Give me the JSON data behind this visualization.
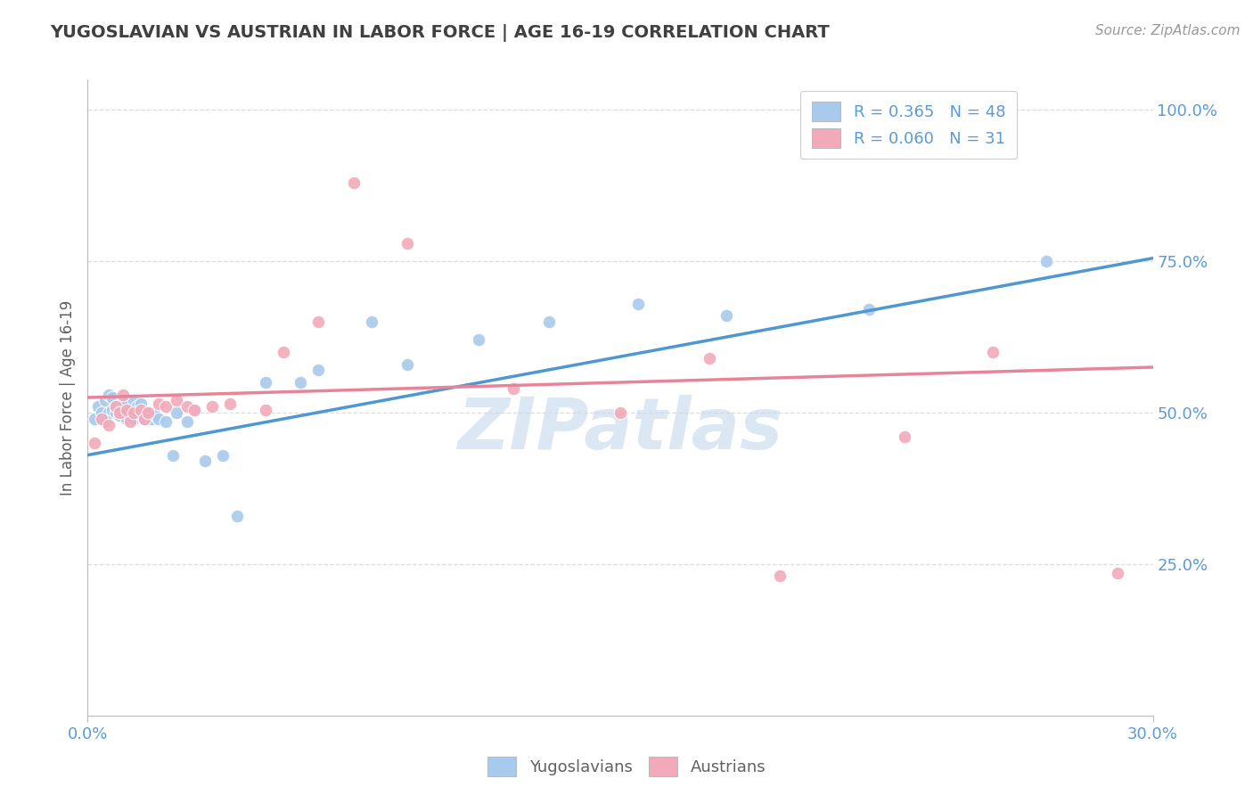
{
  "title": "YUGOSLAVIAN VS AUSTRIAN IN LABOR FORCE | AGE 16-19 CORRELATION CHART",
  "source_text": "Source: ZipAtlas.com",
  "ylabel": "In Labor Force | Age 16-19",
  "xlim": [
    0.0,
    0.3
  ],
  "ylim": [
    0.0,
    1.05
  ],
  "ytick_vals": [
    0.25,
    0.5,
    0.75,
    1.0
  ],
  "legend_r1": "R = 0.365",
  "legend_n1": "N = 48",
  "legend_r2": "R = 0.060",
  "legend_n2": "N = 31",
  "blue_color": "#A8CAEC",
  "pink_color": "#F2AABA",
  "blue_line_color": "#4F97D0",
  "pink_line_color": "#E8849A",
  "watermark_color": "#C5D8EE",
  "yugoslavians_x": [
    0.002,
    0.003,
    0.004,
    0.005,
    0.005,
    0.006,
    0.006,
    0.007,
    0.007,
    0.008,
    0.008,
    0.009,
    0.01,
    0.01,
    0.01,
    0.011,
    0.012,
    0.012,
    0.013,
    0.013,
    0.014,
    0.015,
    0.015,
    0.016,
    0.016,
    0.017,
    0.018,
    0.019,
    0.02,
    0.022,
    0.024,
    0.025,
    0.028,
    0.03,
    0.033,
    0.038,
    0.042,
    0.05,
    0.06,
    0.065,
    0.08,
    0.09,
    0.11,
    0.13,
    0.155,
    0.18,
    0.22,
    0.27
  ],
  "yugoslavians_y": [
    0.49,
    0.51,
    0.5,
    0.52,
    0.485,
    0.5,
    0.53,
    0.505,
    0.525,
    0.5,
    0.51,
    0.495,
    0.5,
    0.515,
    0.52,
    0.49,
    0.495,
    0.505,
    0.52,
    0.49,
    0.51,
    0.505,
    0.515,
    0.5,
    0.49,
    0.5,
    0.49,
    0.495,
    0.49,
    0.485,
    0.43,
    0.5,
    0.485,
    0.505,
    0.42,
    0.43,
    0.33,
    0.55,
    0.55,
    0.57,
    0.65,
    0.58,
    0.62,
    0.65,
    0.68,
    0.66,
    0.67,
    0.75
  ],
  "austrians_x": [
    0.002,
    0.004,
    0.006,
    0.008,
    0.009,
    0.01,
    0.011,
    0.012,
    0.013,
    0.015,
    0.016,
    0.017,
    0.02,
    0.022,
    0.025,
    0.028,
    0.03,
    0.035,
    0.04,
    0.05,
    0.055,
    0.065,
    0.075,
    0.09,
    0.12,
    0.15,
    0.175,
    0.195,
    0.23,
    0.255,
    0.29
  ],
  "austrians_y": [
    0.45,
    0.49,
    0.48,
    0.51,
    0.5,
    0.53,
    0.505,
    0.485,
    0.5,
    0.505,
    0.49,
    0.5,
    0.515,
    0.51,
    0.52,
    0.51,
    0.505,
    0.51,
    0.515,
    0.505,
    0.6,
    0.65,
    0.88,
    0.78,
    0.54,
    0.5,
    0.59,
    0.23,
    0.46,
    0.6,
    0.235
  ],
  "blue_trendline": [
    [
      0.0,
      0.43
    ],
    [
      0.3,
      0.755
    ]
  ],
  "pink_trendline": [
    [
      0.0,
      0.525
    ],
    [
      0.3,
      0.575
    ]
  ],
  "background_color": "#FFFFFF",
  "grid_color": "#DDDDDD",
  "title_color": "#404040",
  "axis_color": "#5B9BD5",
  "label_color": "#606060",
  "source_color": "#999999"
}
